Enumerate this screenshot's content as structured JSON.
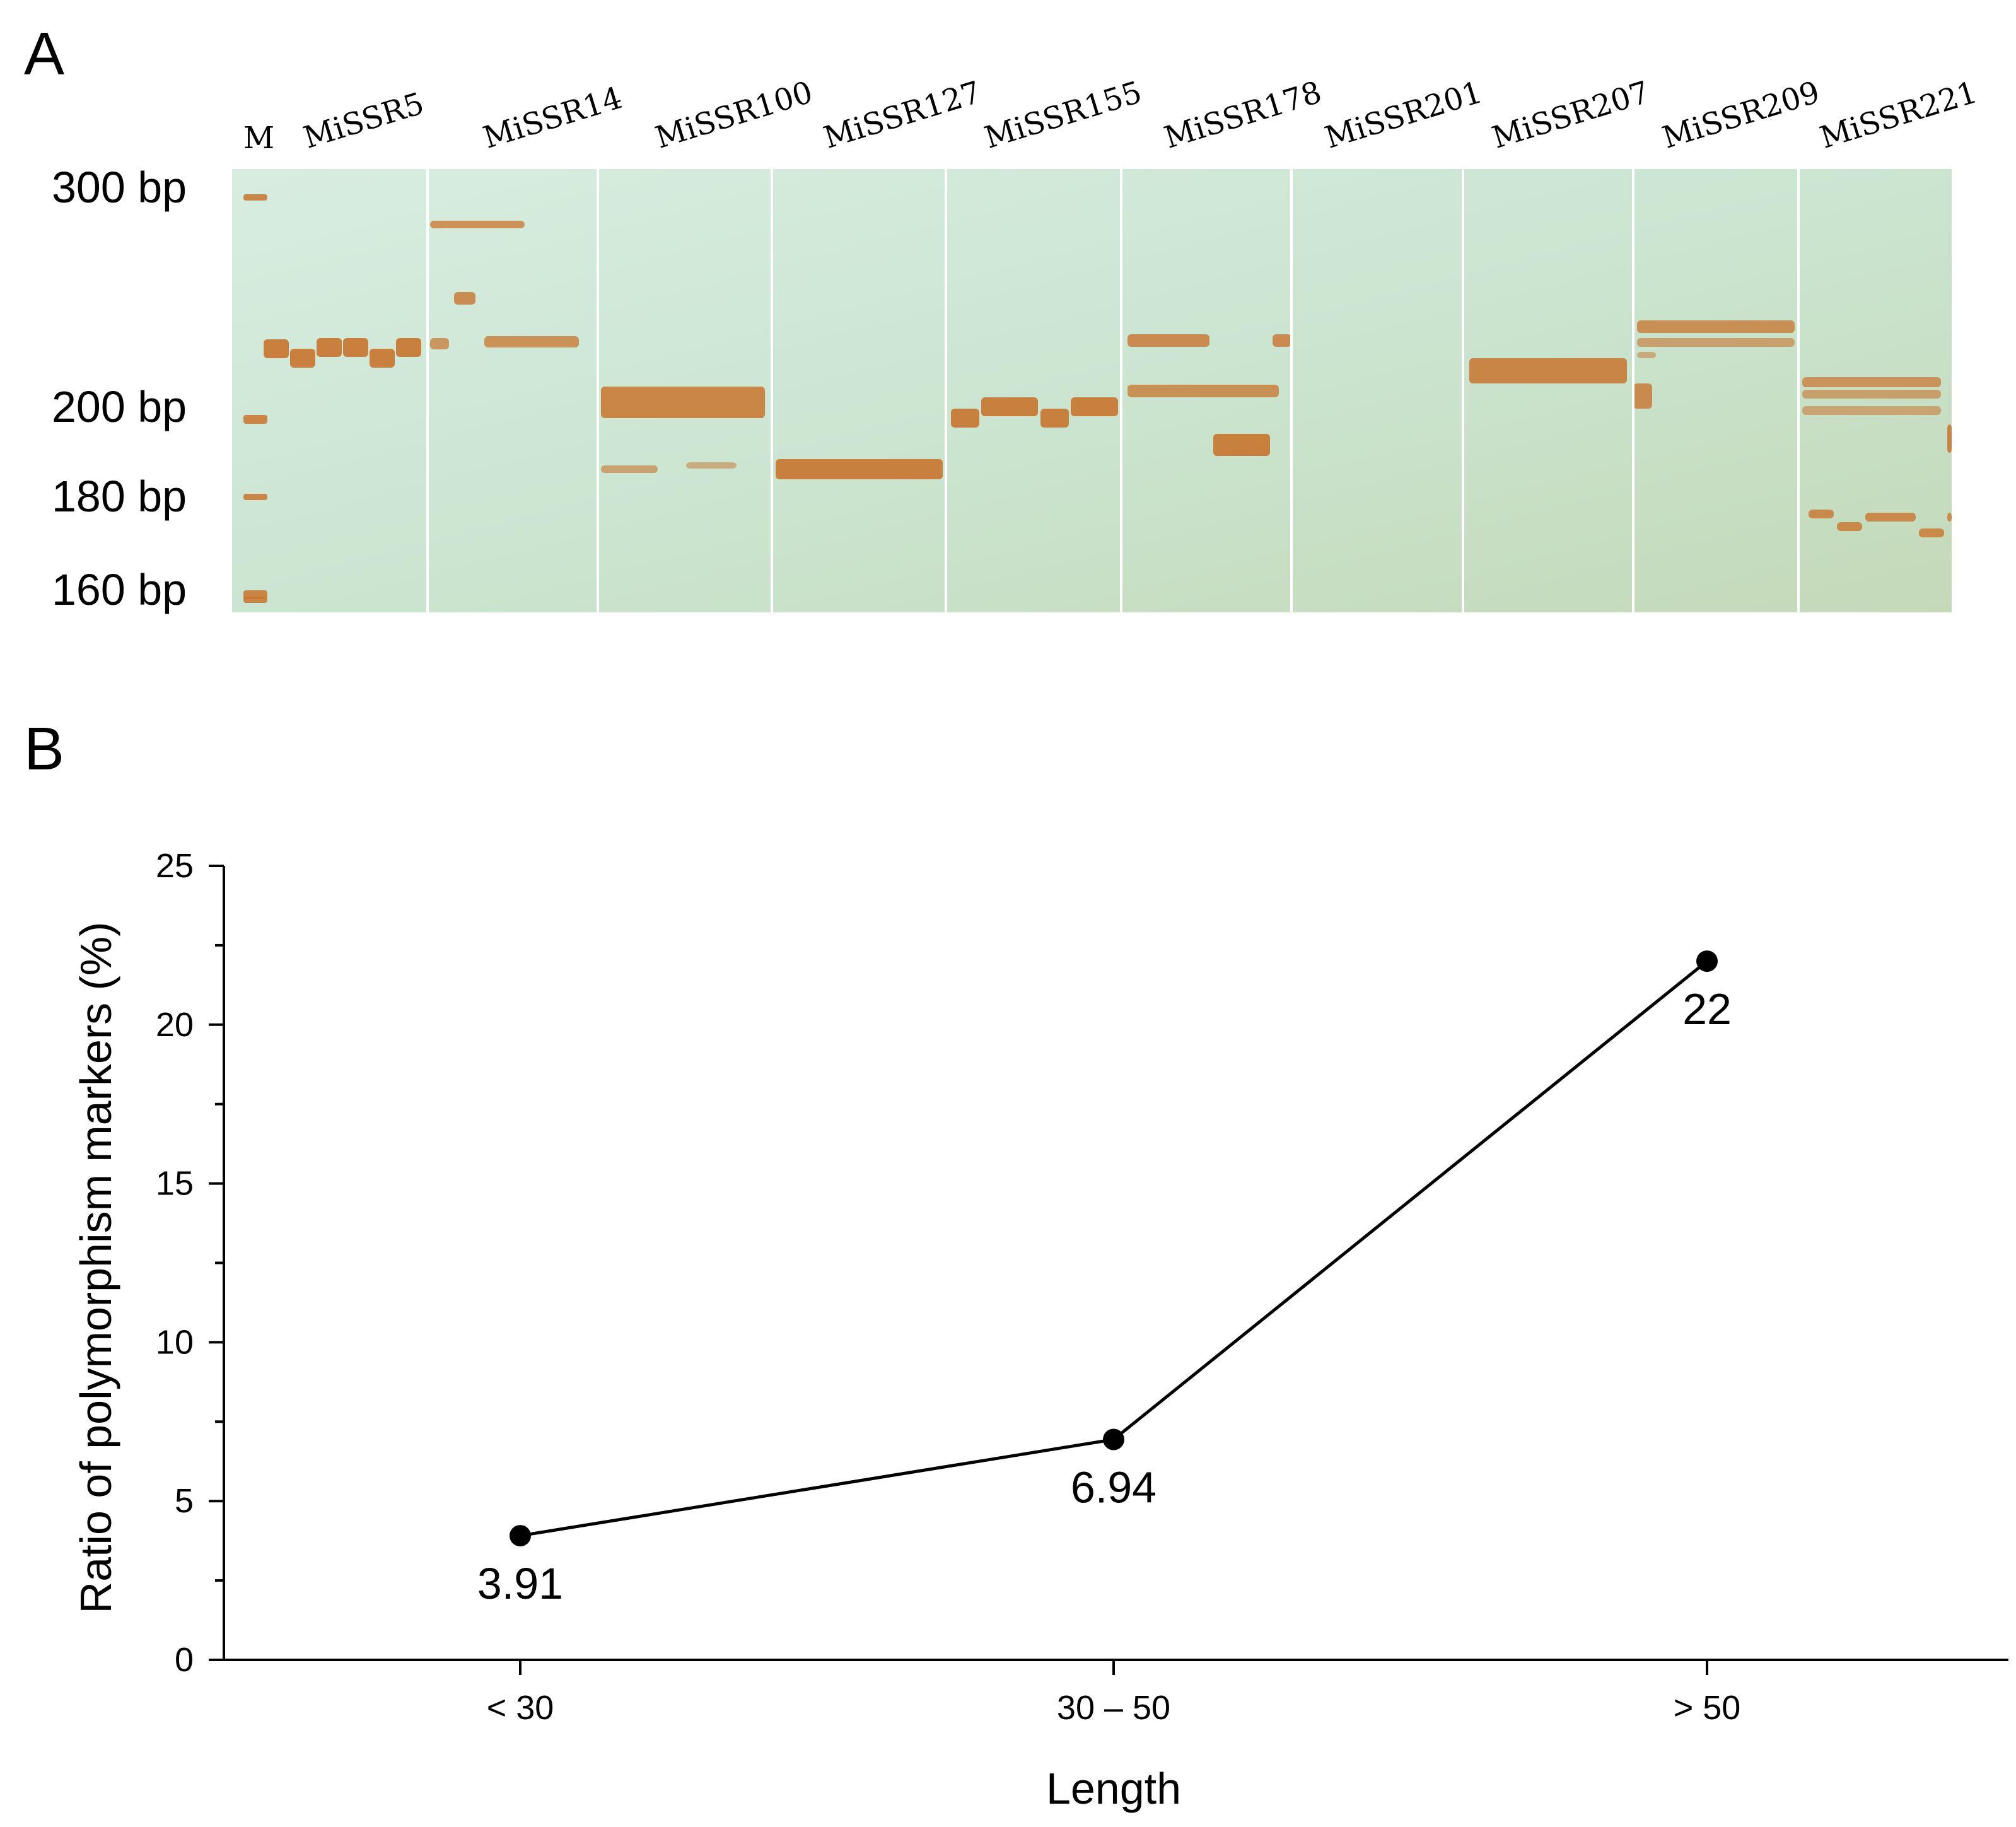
{
  "panel_a": {
    "letter": "A",
    "ladder_label": "M",
    "size_labels": [
      "300 bp",
      "200 bp",
      "180 bp",
      "160 bp"
    ],
    "markers": [
      "MiSSR5",
      "MiSSR14",
      "MiSSR100",
      "MiSSR127",
      "MiSSR155",
      "MiSSR178",
      "MiSSR201",
      "MiSSR207",
      "MiSSR209",
      "MiSSR221"
    ],
    "gel_color": "#cde6d2",
    "band_color": "#c8742e"
  },
  "panel_b": {
    "letter": "B"
  },
  "chart_data": {
    "type": "line",
    "categories": [
      "< 30",
      "30 – 50",
      "> 50"
    ],
    "values": [
      3.91,
      6.94,
      22
    ],
    "data_labels": [
      "3.91",
      "6.94",
      "22"
    ],
    "xlabel": "Length",
    "ylabel": "Ratio of polymorphism markers (%)",
    "ylim": [
      0,
      25
    ],
    "yticks": [
      "0",
      "5",
      "10",
      "15",
      "20",
      "25"
    ],
    "grid": false,
    "legend": "none"
  }
}
